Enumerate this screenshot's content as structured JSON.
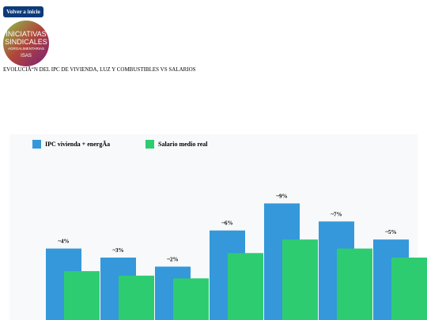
{
  "button": "Volver a inicio",
  "logo": {
    "lines": [
      "INICIATIVAS",
      "SINDICALES",
      "AGROALIMENTARIAS",
      "ISAS"
    ]
  },
  "heading": "EVOLUCIÃ“N DEL IPC DE VIVIENDA, LUZ Y COMBUSTIBLES VS SALARIOS",
  "chart_data": {
    "type": "bar",
    "categories": [
      null,
      null,
      null,
      null,
      null,
      null,
      null
    ],
    "series": [
      {
        "name": "IPC vivienda + energÃa",
        "color": "#3498db",
        "values": [
          4,
          3,
          2,
          6,
          9,
          7,
          5
        ],
        "value_labels": [
          "~4%",
          "~3%",
          "~2%",
          "~6%",
          "~9%",
          "~7%",
          "~5%"
        ]
      },
      {
        "name": "Salario medio real",
        "color": "#2ecc71",
        "values": [
          1.5,
          1,
          0.7,
          3.5,
          5,
          4,
          3
        ]
      }
    ],
    "ylim": [
      -4,
      10
    ]
  }
}
